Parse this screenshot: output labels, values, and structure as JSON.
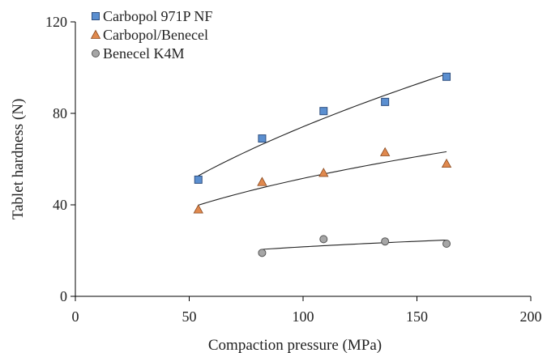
{
  "chart_data": {
    "type": "scatter",
    "title": "",
    "xlabel": "Compaction pressure (MPa)",
    "ylabel": "Tablet hardness (N)",
    "xlim": [
      0,
      200
    ],
    "ylim": [
      0,
      120
    ],
    "xticks": [
      0,
      50,
      100,
      150,
      200
    ],
    "yticks": [
      0,
      40,
      80,
      120
    ],
    "grid": false,
    "legend_position": "top-left",
    "series": [
      {
        "name": "Carbopol 971P NF",
        "marker": "square",
        "color": "#5B8FD0",
        "x": [
          54,
          82,
          109,
          136,
          163
        ],
        "y": [
          51,
          69,
          81,
          85,
          96
        ],
        "trendline": true
      },
      {
        "name": "Carbopol/Benecel",
        "marker": "triangle",
        "color": "#E0894E",
        "x": [
          54,
          82,
          109,
          136,
          163
        ],
        "y": [
          38,
          50,
          54,
          63,
          58
        ],
        "trendline": true
      },
      {
        "name": "Benecel K4M",
        "marker": "circle",
        "color": "#A6A6A6",
        "x": [
          82,
          109,
          136,
          163
        ],
        "y": [
          19,
          25,
          24,
          23
        ],
        "trendline": true
      }
    ]
  }
}
